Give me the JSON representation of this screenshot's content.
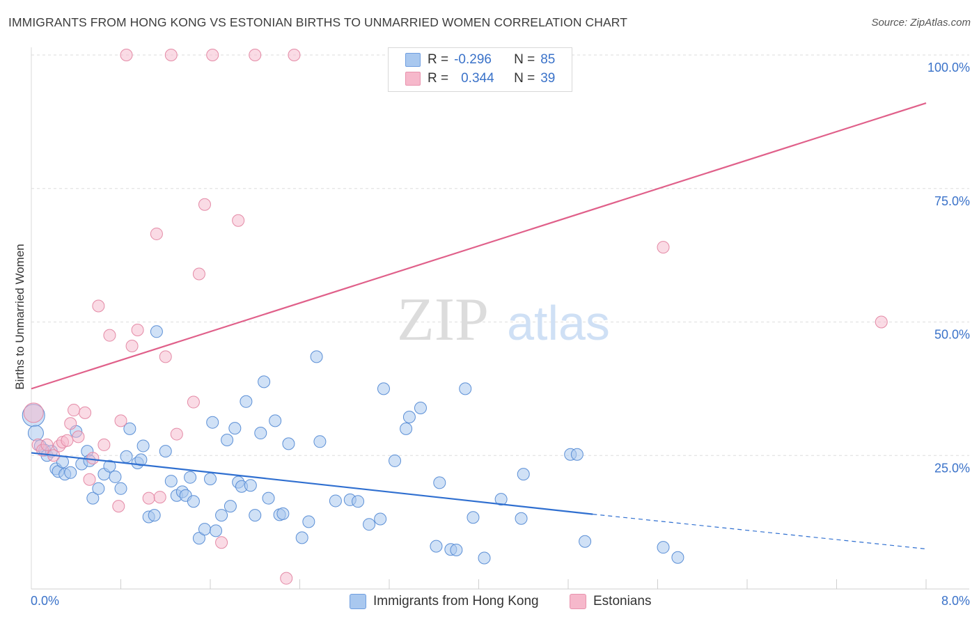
{
  "header": {
    "title": "IMMIGRANTS FROM HONG KONG VS ESTONIAN BIRTHS TO UNMARRIED WOMEN CORRELATION CHART",
    "source": "Source: ZipAtlas.com"
  },
  "watermark": {
    "zip": "ZIP",
    "atlas": "atlas"
  },
  "legend": {
    "rows": [
      {
        "r_label": "R =",
        "r_value": "-0.296",
        "n_label": "N =",
        "n_value": "85",
        "color": "#a9c8ef"
      },
      {
        "r_label": "R =",
        "r_value": "0.344",
        "n_label": "N =",
        "n_value": "39",
        "color": "#f6b8cb"
      }
    ]
  },
  "bottom_legend": [
    {
      "label": "Immigrants from Hong Kong",
      "color": "#a9c8ef"
    },
    {
      "label": "Estonians",
      "color": "#f6b8cb"
    }
  ],
  "chart_data": {
    "type": "scatter",
    "ylabel": "Births to Unmarried Women",
    "x_tick_labels": [
      "0.0%",
      "8.0%"
    ],
    "y_tick_labels": [
      "25.0%",
      "50.0%",
      "75.0%",
      "100.0%"
    ],
    "xlim": [
      0,
      8
    ],
    "ylim": [
      0,
      100
    ],
    "grid": true,
    "colors": {
      "blue": "#4a86d8",
      "pink": "#e8729a",
      "blue_line": "#2f6fd0",
      "pink_line": "#e0608a"
    },
    "series": [
      {
        "name": "Immigrants from Hong Kong",
        "color": "#a9c8ef",
        "stroke": "#5b8fd6",
        "points": [
          [
            0.02,
            32.5
          ],
          [
            0.04,
            29.2
          ],
          [
            0.08,
            26.8
          ],
          [
            0.12,
            26.0
          ],
          [
            0.14,
            25.0
          ],
          [
            0.18,
            25.8
          ],
          [
            0.22,
            22.5
          ],
          [
            0.24,
            22.0
          ],
          [
            0.28,
            23.8
          ],
          [
            0.3,
            21.5
          ],
          [
            0.35,
            21.8
          ],
          [
            0.4,
            29.5
          ],
          [
            0.45,
            23.4
          ],
          [
            0.5,
            25.8
          ],
          [
            0.52,
            24.0
          ],
          [
            0.55,
            17.0
          ],
          [
            0.6,
            18.8
          ],
          [
            0.65,
            21.5
          ],
          [
            0.7,
            23.0
          ],
          [
            0.75,
            21.0
          ],
          [
            0.8,
            18.8
          ],
          [
            0.85,
            24.8
          ],
          [
            0.88,
            30.0
          ],
          [
            0.95,
            23.6
          ],
          [
            0.98,
            24.2
          ],
          [
            1.0,
            26.8
          ],
          [
            1.05,
            13.5
          ],
          [
            1.1,
            13.8
          ],
          [
            1.12,
            48.2
          ],
          [
            1.2,
            25.8
          ],
          [
            1.25,
            20.2
          ],
          [
            1.3,
            17.5
          ],
          [
            1.35,
            18.2
          ],
          [
            1.38,
            17.5
          ],
          [
            1.42,
            20.9
          ],
          [
            1.45,
            16.4
          ],
          [
            1.5,
            9.5
          ],
          [
            1.55,
            11.2
          ],
          [
            1.6,
            20.6
          ],
          [
            1.62,
            31.2
          ],
          [
            1.65,
            10.9
          ],
          [
            1.7,
            13.8
          ],
          [
            1.75,
            27.9
          ],
          [
            1.78,
            15.5
          ],
          [
            1.82,
            30.1
          ],
          [
            1.85,
            20.0
          ],
          [
            1.88,
            19.2
          ],
          [
            1.92,
            35.1
          ],
          [
            1.96,
            19.4
          ],
          [
            2.0,
            13.8
          ],
          [
            2.05,
            29.2
          ],
          [
            2.08,
            38.8
          ],
          [
            2.12,
            17.0
          ],
          [
            2.18,
            31.5
          ],
          [
            2.22,
            13.9
          ],
          [
            2.25,
            14.1
          ],
          [
            2.3,
            27.2
          ],
          [
            2.42,
            9.6
          ],
          [
            2.48,
            12.6
          ],
          [
            2.55,
            43.5
          ],
          [
            2.58,
            27.6
          ],
          [
            2.72,
            16.5
          ],
          [
            2.85,
            16.7
          ],
          [
            2.92,
            16.4
          ],
          [
            3.02,
            12.1
          ],
          [
            3.12,
            13.1
          ],
          [
            3.15,
            37.5
          ],
          [
            3.25,
            24.0
          ],
          [
            3.35,
            30.0
          ],
          [
            3.38,
            32.2
          ],
          [
            3.48,
            33.9
          ],
          [
            3.62,
            8.0
          ],
          [
            3.65,
            19.9
          ],
          [
            3.75,
            7.4
          ],
          [
            3.8,
            7.3
          ],
          [
            3.88,
            37.5
          ],
          [
            3.95,
            13.4
          ],
          [
            4.05,
            5.8
          ],
          [
            4.2,
            16.8
          ],
          [
            4.38,
            13.2
          ],
          [
            4.4,
            21.5
          ],
          [
            4.82,
            25.2
          ],
          [
            4.88,
            25.2
          ],
          [
            4.95,
            8.9
          ],
          [
            5.65,
            7.8
          ],
          [
            5.78,
            5.9
          ]
        ]
      },
      {
        "name": "Estonians",
        "color": "#f6b8cb",
        "stroke": "#e48aa6",
        "points": [
          [
            0.02,
            33.0
          ],
          [
            0.06,
            27.0
          ],
          [
            0.1,
            26.0
          ],
          [
            0.14,
            27.0
          ],
          [
            0.2,
            25.0
          ],
          [
            0.25,
            26.8
          ],
          [
            0.28,
            27.5
          ],
          [
            0.32,
            27.8
          ],
          [
            0.35,
            31.0
          ],
          [
            0.38,
            33.5
          ],
          [
            0.42,
            28.5
          ],
          [
            0.48,
            33.0
          ],
          [
            0.52,
            20.5
          ],
          [
            0.55,
            24.5
          ],
          [
            0.6,
            53.0
          ],
          [
            0.65,
            27.0
          ],
          [
            0.7,
            47.5
          ],
          [
            0.78,
            15.5
          ],
          [
            0.8,
            31.5
          ],
          [
            0.85,
            100.0
          ],
          [
            0.9,
            45.5
          ],
          [
            0.95,
            48.5
          ],
          [
            1.05,
            17.0
          ],
          [
            1.12,
            66.5
          ],
          [
            1.15,
            17.2
          ],
          [
            1.2,
            43.5
          ],
          [
            1.25,
            100.0
          ],
          [
            1.3,
            29.0
          ],
          [
            1.45,
            35.0
          ],
          [
            1.5,
            59.0
          ],
          [
            1.55,
            72.0
          ],
          [
            1.62,
            100.0
          ],
          [
            1.7,
            8.7
          ],
          [
            1.85,
            69.0
          ],
          [
            2.0,
            100.0
          ],
          [
            2.28,
            2.0
          ],
          [
            2.35,
            100.0
          ],
          [
            5.65,
            64.0
          ],
          [
            7.6,
            50.0
          ]
        ]
      }
    ],
    "trend_lines": [
      {
        "series": "Immigrants from Hong Kong",
        "x": [
          0.0,
          5.02
        ],
        "y": [
          25.5,
          14.0
        ],
        "dashed_to": [
          8.0,
          7.5
        ]
      },
      {
        "series": "Estonians",
        "x": [
          0.0,
          8.0
        ],
        "y": [
          37.5,
          91.0
        ]
      }
    ]
  }
}
